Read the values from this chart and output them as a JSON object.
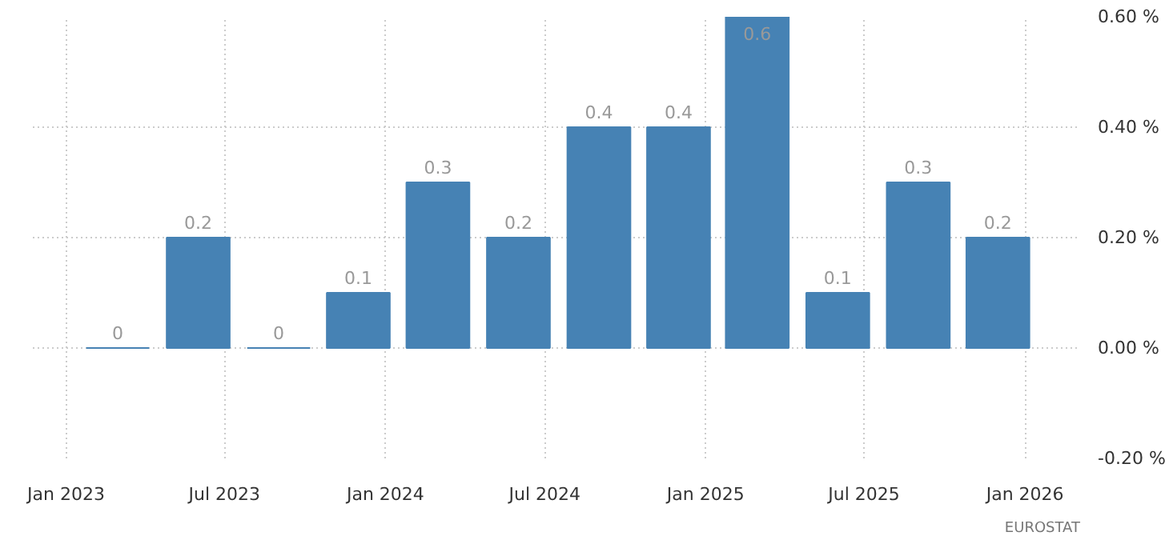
{
  "chart_data": {
    "type": "bar",
    "x": [
      "2023-03-01",
      "2023-06-01",
      "2023-09-01",
      "2023-12-01",
      "2024-03-01",
      "2024-06-01",
      "2024-09-01",
      "2024-12-01",
      "2025-03-01",
      "2025-06-01",
      "2025-09-01",
      "2025-12-01"
    ],
    "values": [
      0,
      0.2,
      0,
      0.1,
      0.3,
      0.2,
      0.4,
      0.4,
      0.6,
      0.1,
      0.3,
      0.2
    ],
    "color": "#4682b4",
    "data_labels": true,
    "xlim": [
      "2022-11-24",
      "2026-03-05"
    ],
    "xticks": [
      {
        "value": "2023-01-01",
        "label": "Jan 2023"
      },
      {
        "value": "2023-07-01",
        "label": "Jul 2023"
      },
      {
        "value": "2024-01-01",
        "label": "Jan 2024"
      },
      {
        "value": "2024-07-01",
        "label": "Jul 2024"
      },
      {
        "value": "2025-01-01",
        "label": "Jan 2025"
      },
      {
        "value": "2025-07-01",
        "label": "Jul 2025"
      },
      {
        "value": "2026-01-01",
        "label": "Jan 2026"
      }
    ],
    "ylim": [
      -0.2,
      0.6
    ],
    "yticks": [
      {
        "value": -0.2,
        "label": "-0.20 %"
      },
      {
        "value": 0,
        "label": "0.00 %"
      },
      {
        "value": 0.2,
        "label": "0.20 %"
      },
      {
        "value": 0.4,
        "label": "0.40 %"
      },
      {
        "value": 0.6,
        "label": "0.60 %"
      }
    ],
    "grid": true,
    "annotations": [
      "EUROSTAT"
    ]
  }
}
